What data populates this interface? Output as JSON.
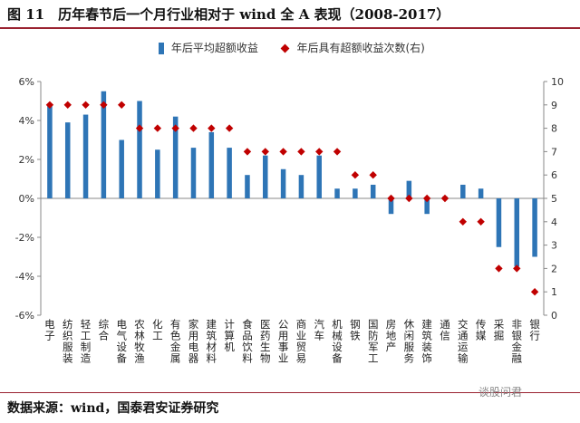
{
  "header": {
    "title": "图 11　历年春节后一个月行业相对于 wind 全 A 表现（2008-2017）"
  },
  "footer": {
    "source": "数据来源：wind，国泰君安证券研究",
    "watermark": "谈股问君"
  },
  "colors": {
    "bar": "#2e75b6",
    "marker": "#c00000",
    "rule": "#9a2230"
  },
  "chart_data": {
    "type": "bar",
    "categories": [
      "电子",
      "纺织服装",
      "轻工制造",
      "综合",
      "电气设备",
      "农林牧渔",
      "化工",
      "有色金属",
      "家用电器",
      "建筑材料",
      "计算机",
      "食品饮料",
      "医药生物",
      "公用事业",
      "商业贸易",
      "汽车",
      "机械设备",
      "钢铁",
      "国防军工",
      "房地产",
      "休闲服务",
      "建筑装饰",
      "通信",
      "交通运输",
      "传媒",
      "采掘",
      "非银金融",
      "银行"
    ],
    "series": [
      {
        "name": "年后平均超额收益",
        "type": "bar",
        "axis": "left",
        "values": [
          4.8,
          3.9,
          4.3,
          5.5,
          3.0,
          5.0,
          2.5,
          4.2,
          2.6,
          3.4,
          2.6,
          1.2,
          2.2,
          1.5,
          1.2,
          2.2,
          0.5,
          0.5,
          0.7,
          -0.8,
          0.9,
          -0.8,
          0.1,
          0.7,
          0.5,
          -2.5,
          -3.5,
          -3.0
        ]
      },
      {
        "name": "年后具有超额收益次数(右)",
        "type": "scatter",
        "axis": "right",
        "values": [
          9,
          9,
          9,
          9,
          9,
          8,
          8,
          8,
          8,
          8,
          8,
          7,
          7,
          7,
          7,
          7,
          7,
          6,
          6,
          5,
          5,
          5,
          5,
          4,
          4,
          2,
          2,
          1
        ]
      }
    ],
    "yleft": {
      "min": -6,
      "max": 6,
      "step": 2,
      "tick_labels": [
        "-6%",
        "-4%",
        "-2%",
        "0%",
        "2%",
        "4%",
        "6%"
      ]
    },
    "yright": {
      "min": 0,
      "max": 10,
      "step": 1,
      "tick_labels": [
        "0",
        "1",
        "2",
        "3",
        "4",
        "5",
        "6",
        "7",
        "8",
        "9",
        "10"
      ]
    },
    "grid": false,
    "legend": "top"
  }
}
